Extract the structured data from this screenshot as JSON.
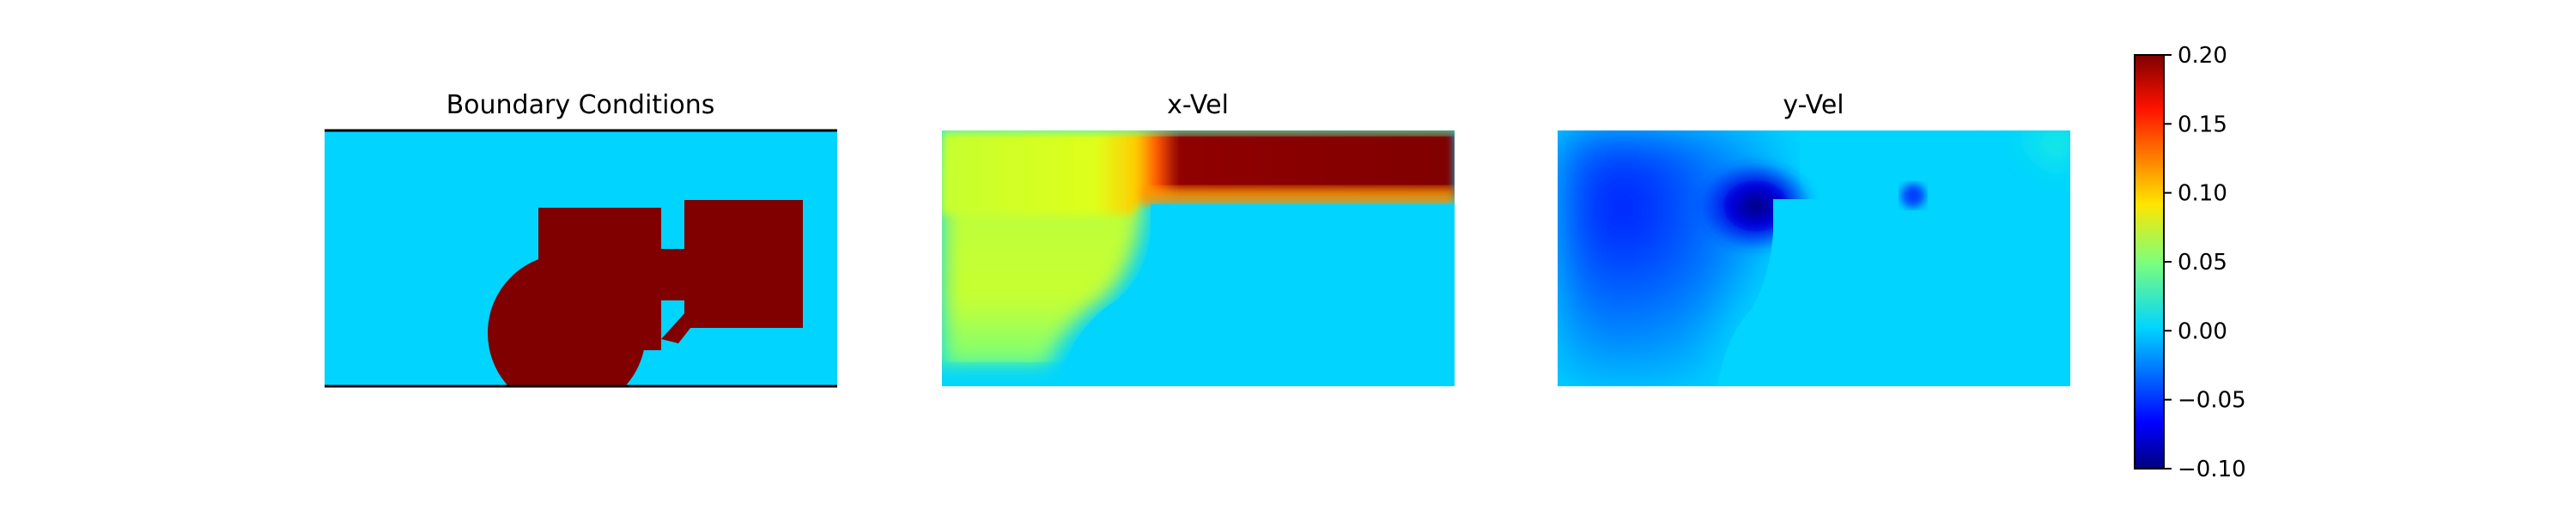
{
  "chart_data": [
    {
      "type": "heatmap",
      "title": "Boundary Conditions",
      "colors": {
        "fluid": "#00d4ff",
        "obstacle": "#800000"
      },
      "shapes": [
        {
          "name": "square-block",
          "shape": "rectangle"
        },
        {
          "name": "right-block",
          "shape": "rectangle"
        },
        {
          "name": "circle",
          "shape": "circle"
        },
        {
          "name": "connector-strut",
          "shape": "diagonal bar"
        }
      ]
    },
    {
      "type": "heatmap",
      "title": "x-Vel",
      "color_range": [
        -0.1,
        0.2
      ],
      "regions": [
        {
          "name": "upper-jet",
          "value": 0.2
        },
        {
          "name": "left-inflow",
          "value": 0.09
        },
        {
          "name": "obstacle-and-wake",
          "value": 0.0
        }
      ]
    },
    {
      "type": "heatmap",
      "title": "y-Vel",
      "color_range": [
        -0.1,
        0.2
      ],
      "regions": [
        {
          "name": "leading-corner-minimum",
          "value": -0.1
        },
        {
          "name": "left-field",
          "value": -0.04
        },
        {
          "name": "obstacle-and-wake",
          "value": 0.0
        },
        {
          "name": "upper-right-corner",
          "value": 0.04
        }
      ]
    }
  ],
  "colorbar": {
    "vmin": -0.1,
    "vmax": 0.2,
    "colormap": "jet",
    "ticks": [
      "0.20",
      "0.15",
      "0.10",
      "0.05",
      "0.00",
      "−0.05",
      "−0.10"
    ]
  }
}
